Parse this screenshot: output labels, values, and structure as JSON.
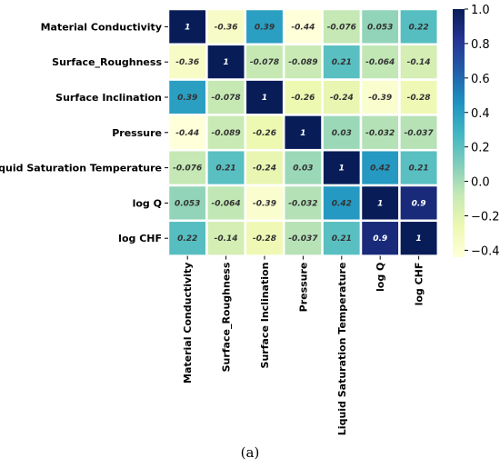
{
  "caption": "(a)",
  "colors": {
    "scale": [
      "#ffffd9",
      "#edf8b1",
      "#c7e9b4",
      "#7fcdbb",
      "#41b6c4",
      "#1d91c0",
      "#225ea8",
      "#253494",
      "#081d58"
    ],
    "text_dark": "#333333",
    "text_light": "#ffffff",
    "cell_border": "#ffffff"
  },
  "chart_data": {
    "type": "heatmap",
    "title": "",
    "xlabel": "",
    "ylabel": "",
    "row_labels": [
      "Material Conductivity",
      "Surface_Roughness",
      "Surface Inclination",
      "Pressure",
      "Liquid Saturation Temperature",
      "log Q",
      "log CHF"
    ],
    "col_labels": [
      "Material Conductivity",
      "Surface_Roughness",
      "Surface Inclination",
      "Pressure",
      "Liquid Saturation Temperature",
      "log Q",
      "log CHF"
    ],
    "values": [
      [
        1,
        -0.36,
        0.39,
        -0.44,
        -0.076,
        0.053,
        0.22
      ],
      [
        -0.36,
        1,
        -0.078,
        -0.089,
        0.21,
        -0.064,
        -0.14
      ],
      [
        0.39,
        -0.078,
        1,
        -0.26,
        -0.24,
        -0.39,
        -0.28
      ],
      [
        -0.44,
        -0.089,
        -0.26,
        1,
        0.03,
        -0.032,
        -0.037
      ],
      [
        -0.076,
        0.21,
        -0.24,
        0.03,
        1,
        0.42,
        0.21
      ],
      [
        0.053,
        -0.064,
        -0.39,
        -0.032,
        0.42,
        1,
        0.9
      ],
      [
        0.22,
        -0.14,
        -0.28,
        -0.037,
        0.21,
        0.9,
        1
      ]
    ],
    "value_labels": [
      [
        "1",
        "-0.36",
        "0.39",
        "-0.44",
        "-0.076",
        "0.053",
        "0.22"
      ],
      [
        "-0.36",
        "1",
        "-0.078",
        "-0.089",
        "0.21",
        "-0.064",
        "-0.14"
      ],
      [
        "0.39",
        "-0.078",
        "1",
        "-0.26",
        "-0.24",
        "-0.39",
        "-0.28"
      ],
      [
        "-0.44",
        "-0.089",
        "-0.26",
        "1",
        "0.03",
        "-0.032",
        "-0.037"
      ],
      [
        "-0.076",
        "0.21",
        "-0.24",
        "0.03",
        "1",
        "0.42",
        "0.21"
      ],
      [
        "0.053",
        "-0.064",
        "-0.39",
        "-0.032",
        "0.42",
        "1",
        "0.9"
      ],
      [
        "0.22",
        "-0.14",
        "-0.28",
        "-0.037",
        "0.21",
        "0.9",
        "1"
      ]
    ],
    "colorbar": {
      "range": [
        -0.44,
        1.0
      ],
      "ticks": [
        -0.4,
        -0.2,
        0.0,
        0.2,
        0.4,
        0.6,
        0.8,
        1.0
      ],
      "tick_labels": [
        "−0.4",
        "−0.2",
        "0.0",
        "0.2",
        "0.4",
        "0.6",
        "0.8",
        "1.0"
      ]
    },
    "grid": false,
    "legend": "colorbar-right"
  }
}
